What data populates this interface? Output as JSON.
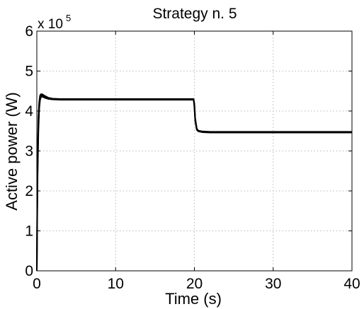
{
  "chart_data": {
    "type": "line",
    "title": "Strategy n. 5",
    "xlabel": "Time (s)",
    "ylabel": "Active power (W)",
    "y_multiplier_label": "x 10",
    "y_multiplier_exponent": "5",
    "xlim": [
      0,
      40
    ],
    "ylim": [
      0,
      6
    ],
    "x_ticks": [
      0,
      10,
      20,
      30,
      40
    ],
    "y_ticks": [
      0,
      1,
      2,
      3,
      4,
      5,
      6
    ],
    "grid": true,
    "line_color": "#000000",
    "series": [
      {
        "x": [
          0,
          0.05,
          0.1,
          0.2,
          0.3,
          0.4,
          0.5,
          0.7,
          1.0,
          1.5,
          2.0,
          3.0,
          5.0,
          10.0,
          15.0,
          19.8,
          19.9,
          20.0,
          20.1,
          20.3,
          20.5,
          21.0,
          22.0,
          25.0,
          30.0,
          35.0,
          40.0
        ],
        "values": [
          0.0,
          1.5,
          2.6,
          3.7,
          4.15,
          4.32,
          4.38,
          4.39,
          4.36,
          4.32,
          4.3,
          4.29,
          4.29,
          4.29,
          4.29,
          4.29,
          4.29,
          4.15,
          3.8,
          3.55,
          3.5,
          3.48,
          3.47,
          3.47,
          3.47,
          3.47,
          3.47
        ]
      },
      {
        "x": [
          0,
          0.05,
          0.1,
          0.2,
          0.3,
          0.4,
          0.5,
          0.7,
          1.0,
          1.5,
          2.0,
          3.0,
          5.0,
          10.0,
          15.0,
          19.8,
          19.9,
          20.0,
          20.1,
          20.3,
          20.5,
          21.0,
          22.0,
          25.0,
          30.0,
          35.0,
          40.0
        ],
        "values": [
          0.0,
          1.3,
          2.4,
          3.5,
          4.05,
          4.26,
          4.34,
          4.36,
          4.33,
          4.3,
          4.29,
          4.28,
          4.28,
          4.28,
          4.28,
          4.28,
          4.28,
          4.1,
          3.75,
          3.53,
          3.49,
          3.47,
          3.46,
          3.46,
          3.46,
          3.46,
          3.46
        ]
      },
      {
        "x": [
          0,
          0.05,
          0.1,
          0.2,
          0.3,
          0.4,
          0.5,
          0.7,
          1.0,
          1.5,
          2.0,
          3.0,
          5.0,
          10.0,
          15.0,
          19.8,
          19.9,
          20.0,
          20.1,
          20.3,
          20.5,
          21.0,
          22.0,
          25.0,
          30.0,
          35.0,
          40.0
        ],
        "values": [
          0.0,
          1.7,
          2.8,
          3.85,
          4.22,
          4.38,
          4.42,
          4.42,
          4.38,
          4.33,
          4.31,
          4.3,
          4.3,
          4.3,
          4.3,
          4.3,
          4.3,
          4.18,
          3.82,
          3.56,
          3.51,
          3.49,
          3.48,
          3.48,
          3.48,
          3.48,
          3.48
        ]
      }
    ]
  }
}
